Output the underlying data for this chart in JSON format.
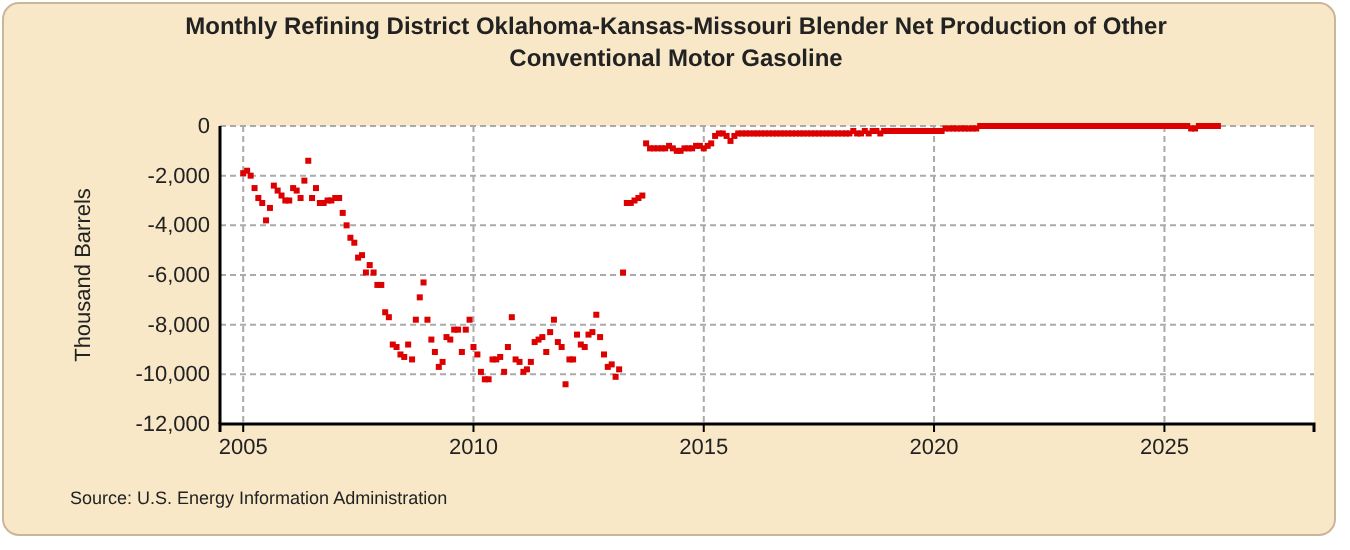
{
  "chart_data": {
    "type": "scatter",
    "title": "Monthly Refining District Oklahoma-Kansas-Missouri Blender Net Production of Other Conventional Motor Gasoline",
    "ylabel": "Thousand Barrels",
    "annotations": [
      "Source: U.S. Energy Information Administration"
    ],
    "marker": "square",
    "grid": true,
    "xlim": [
      "2004-07",
      "2028-04"
    ],
    "xticks": [
      {
        "value": "2005",
        "label": "2005"
      },
      {
        "value": "2010",
        "label": "2010"
      },
      {
        "value": "2015",
        "label": "2015"
      },
      {
        "value": "2020",
        "label": "2020"
      },
      {
        "value": "2025",
        "label": "2025"
      }
    ],
    "ylim": [
      -12000,
      0
    ],
    "yticks": [
      {
        "value": -12000,
        "label": "-12,000"
      },
      {
        "value": -10000,
        "label": "-10,000"
      },
      {
        "value": -8000,
        "label": "-8,000"
      },
      {
        "value": -6000,
        "label": "-6,000"
      },
      {
        "value": -4000,
        "label": "-4,000"
      },
      {
        "value": -2000,
        "label": "-2,000"
      },
      {
        "value": 0,
        "label": "0"
      }
    ],
    "series": [
      {
        "color": "#dd0000",
        "x": [
          "2005-01",
          "2005-02",
          "2005-03",
          "2005-04",
          "2005-05",
          "2005-06",
          "2005-07",
          "2005-08",
          "2005-09",
          "2005-10",
          "2005-11",
          "2005-12",
          "2006-01",
          "2006-02",
          "2006-03",
          "2006-04",
          "2006-05",
          "2006-06",
          "2006-07",
          "2006-08",
          "2006-09",
          "2006-10",
          "2006-11",
          "2006-12",
          "2007-01",
          "2007-02",
          "2007-03",
          "2007-04",
          "2007-05",
          "2007-06",
          "2007-07",
          "2007-08",
          "2007-09",
          "2007-10",
          "2007-11",
          "2007-12",
          "2008-01",
          "2008-02",
          "2008-03",
          "2008-04",
          "2008-05",
          "2008-06",
          "2008-07",
          "2008-08",
          "2008-09",
          "2008-10",
          "2008-11",
          "2008-12",
          "2009-01",
          "2009-02",
          "2009-03",
          "2009-04",
          "2009-05",
          "2009-06",
          "2009-07",
          "2009-08",
          "2009-09",
          "2009-10",
          "2009-11",
          "2009-12",
          "2010-01",
          "2010-02",
          "2010-03",
          "2010-04",
          "2010-05",
          "2010-06",
          "2010-07",
          "2010-08",
          "2010-09",
          "2010-10",
          "2010-11",
          "2010-12",
          "2011-01",
          "2011-02",
          "2011-03",
          "2011-04",
          "2011-05",
          "2011-06",
          "2011-07",
          "2011-08",
          "2011-09",
          "2011-10",
          "2011-11",
          "2011-12",
          "2012-01",
          "2012-02",
          "2012-03",
          "2012-04",
          "2012-05",
          "2012-06",
          "2012-07",
          "2012-08",
          "2012-09",
          "2012-10",
          "2012-11",
          "2012-12",
          "2013-01",
          "2013-02",
          "2013-03",
          "2013-04",
          "2013-05",
          "2013-06",
          "2013-07",
          "2013-08",
          "2013-09",
          "2013-10",
          "2013-11",
          "2013-12",
          "2014-01",
          "2014-02",
          "2014-03",
          "2014-04",
          "2014-05",
          "2014-06",
          "2014-07",
          "2014-08",
          "2014-09",
          "2014-10",
          "2014-11",
          "2014-12",
          "2015-01",
          "2015-02",
          "2015-03",
          "2015-04",
          "2015-05",
          "2015-06",
          "2015-07",
          "2015-08",
          "2015-09",
          "2015-10",
          "2015-11",
          "2015-12",
          "2016-01",
          "2016-02",
          "2016-03",
          "2016-04",
          "2016-05",
          "2016-06",
          "2016-07",
          "2016-08",
          "2016-09",
          "2016-10",
          "2016-11",
          "2016-12",
          "2017-01",
          "2017-02",
          "2017-03",
          "2017-04",
          "2017-05",
          "2017-06",
          "2017-07",
          "2017-08",
          "2017-09",
          "2017-10",
          "2017-11",
          "2017-12",
          "2018-01",
          "2018-02",
          "2018-03",
          "2018-04",
          "2018-05",
          "2018-06",
          "2018-07",
          "2018-08",
          "2018-09",
          "2018-10",
          "2018-11",
          "2018-12",
          "2019-01",
          "2019-02",
          "2019-03",
          "2019-04",
          "2019-05",
          "2019-06",
          "2019-07",
          "2019-08",
          "2019-09",
          "2019-10",
          "2019-11",
          "2019-12",
          "2020-01",
          "2020-02",
          "2020-03",
          "2020-04",
          "2020-05",
          "2020-06",
          "2020-07",
          "2020-08",
          "2020-09",
          "2020-10",
          "2020-11",
          "2020-12",
          "2021-01",
          "2021-02",
          "2021-03",
          "2021-04",
          "2021-05",
          "2021-06",
          "2021-07",
          "2021-08",
          "2021-09",
          "2021-10",
          "2021-11",
          "2021-12",
          "2022-01",
          "2022-02",
          "2022-03",
          "2022-04",
          "2022-05",
          "2022-06",
          "2022-07",
          "2022-08",
          "2022-09",
          "2022-10",
          "2022-11",
          "2022-12",
          "2023-01",
          "2023-02",
          "2023-03",
          "2023-04",
          "2023-05",
          "2023-06",
          "2023-07",
          "2023-08",
          "2023-09",
          "2023-10",
          "2023-11",
          "2023-12",
          "2024-01",
          "2024-02",
          "2024-03",
          "2024-04",
          "2024-05",
          "2024-06",
          "2024-07",
          "2024-08",
          "2024-09",
          "2024-10",
          "2024-11",
          "2024-12",
          "2025-01",
          "2025-02",
          "2025-03",
          "2025-04",
          "2025-05",
          "2025-06",
          "2025-07",
          "2025-08",
          "2025-09",
          "2025-10",
          "2025-11",
          "2025-12",
          "2026-01",
          "2026-02",
          "2026-03"
        ],
        "values": [
          -1900,
          -1800,
          -2000,
          -2500,
          -2900,
          -3100,
          -3800,
          -3300,
          -2400,
          -2600,
          -2800,
          -3000,
          -3000,
          -2500,
          -2600,
          -2900,
          -2200,
          -1400,
          -2900,
          -2500,
          -3100,
          -3100,
          -3000,
          -3000,
          -2900,
          -2900,
          -3500,
          -4000,
          -4500,
          -4700,
          -5300,
          -5200,
          -5900,
          -5600,
          -5900,
          -6400,
          -6400,
          -7500,
          -7700,
          -8800,
          -8900,
          -9200,
          -9300,
          -8800,
          -9400,
          -7800,
          -6900,
          -6300,
          -7800,
          -8600,
          -9100,
          -9700,
          -9500,
          -8500,
          -8600,
          -8200,
          -8200,
          -9100,
          -8200,
          -7800,
          -8900,
          -9200,
          -9900,
          -10200,
          -10200,
          -9400,
          -9400,
          -9300,
          -9900,
          -8900,
          -7700,
          -9400,
          -9500,
          -9900,
          -9800,
          -9500,
          -8700,
          -8600,
          -8500,
          -9100,
          -8300,
          -7800,
          -8700,
          -8900,
          -10400,
          -9400,
          -9400,
          -8400,
          -8800,
          -8900,
          -8400,
          -8300,
          -7600,
          -8500,
          -9200,
          -9700,
          -9600,
          -10100,
          -9800,
          -5900,
          -3100,
          -3100,
          -3000,
          -2900,
          -2800,
          -700,
          -900,
          -900,
          -900,
          -900,
          -900,
          -800,
          -900,
          -1000,
          -1000,
          -900,
          -900,
          -900,
          -800,
          -800,
          -900,
          -800,
          -700,
          -400,
          -300,
          -300,
          -400,
          -600,
          -400,
          -300,
          -300,
          -300,
          -300,
          -300,
          -300,
          -300,
          -300,
          -300,
          -300,
          -300,
          -300,
          -300,
          -300,
          -300,
          -300,
          -300,
          -300,
          -300,
          -300,
          -300,
          -300,
          -300,
          -300,
          -300,
          -300,
          -300,
          -300,
          -300,
          -300,
          -200,
          -300,
          -300,
          -200,
          -300,
          -200,
          -200,
          -300,
          -200,
          -200,
          -200,
          -200,
          -200,
          -200,
          -200,
          -200,
          -200,
          -200,
          -200,
          -200,
          -200,
          -200,
          -200,
          -200,
          -100,
          -100,
          -100,
          -100,
          -100,
          -100,
          -100,
          -100,
          -100,
          0,
          0,
          0,
          0,
          0,
          0,
          0,
          0,
          0,
          0,
          0,
          0,
          0,
          0,
          0,
          0,
          0,
          0,
          0,
          0,
          0,
          0,
          0,
          0,
          0,
          0,
          0,
          0,
          0,
          0,
          0,
          0,
          0,
          0,
          0,
          0,
          0,
          0,
          0,
          0,
          0,
          0,
          0,
          0,
          0,
          0,
          0,
          0,
          0,
          0,
          0,
          0,
          0,
          0,
          0,
          -100,
          -100,
          0,
          0,
          0,
          0,
          0,
          0
        ]
      }
    ]
  }
}
